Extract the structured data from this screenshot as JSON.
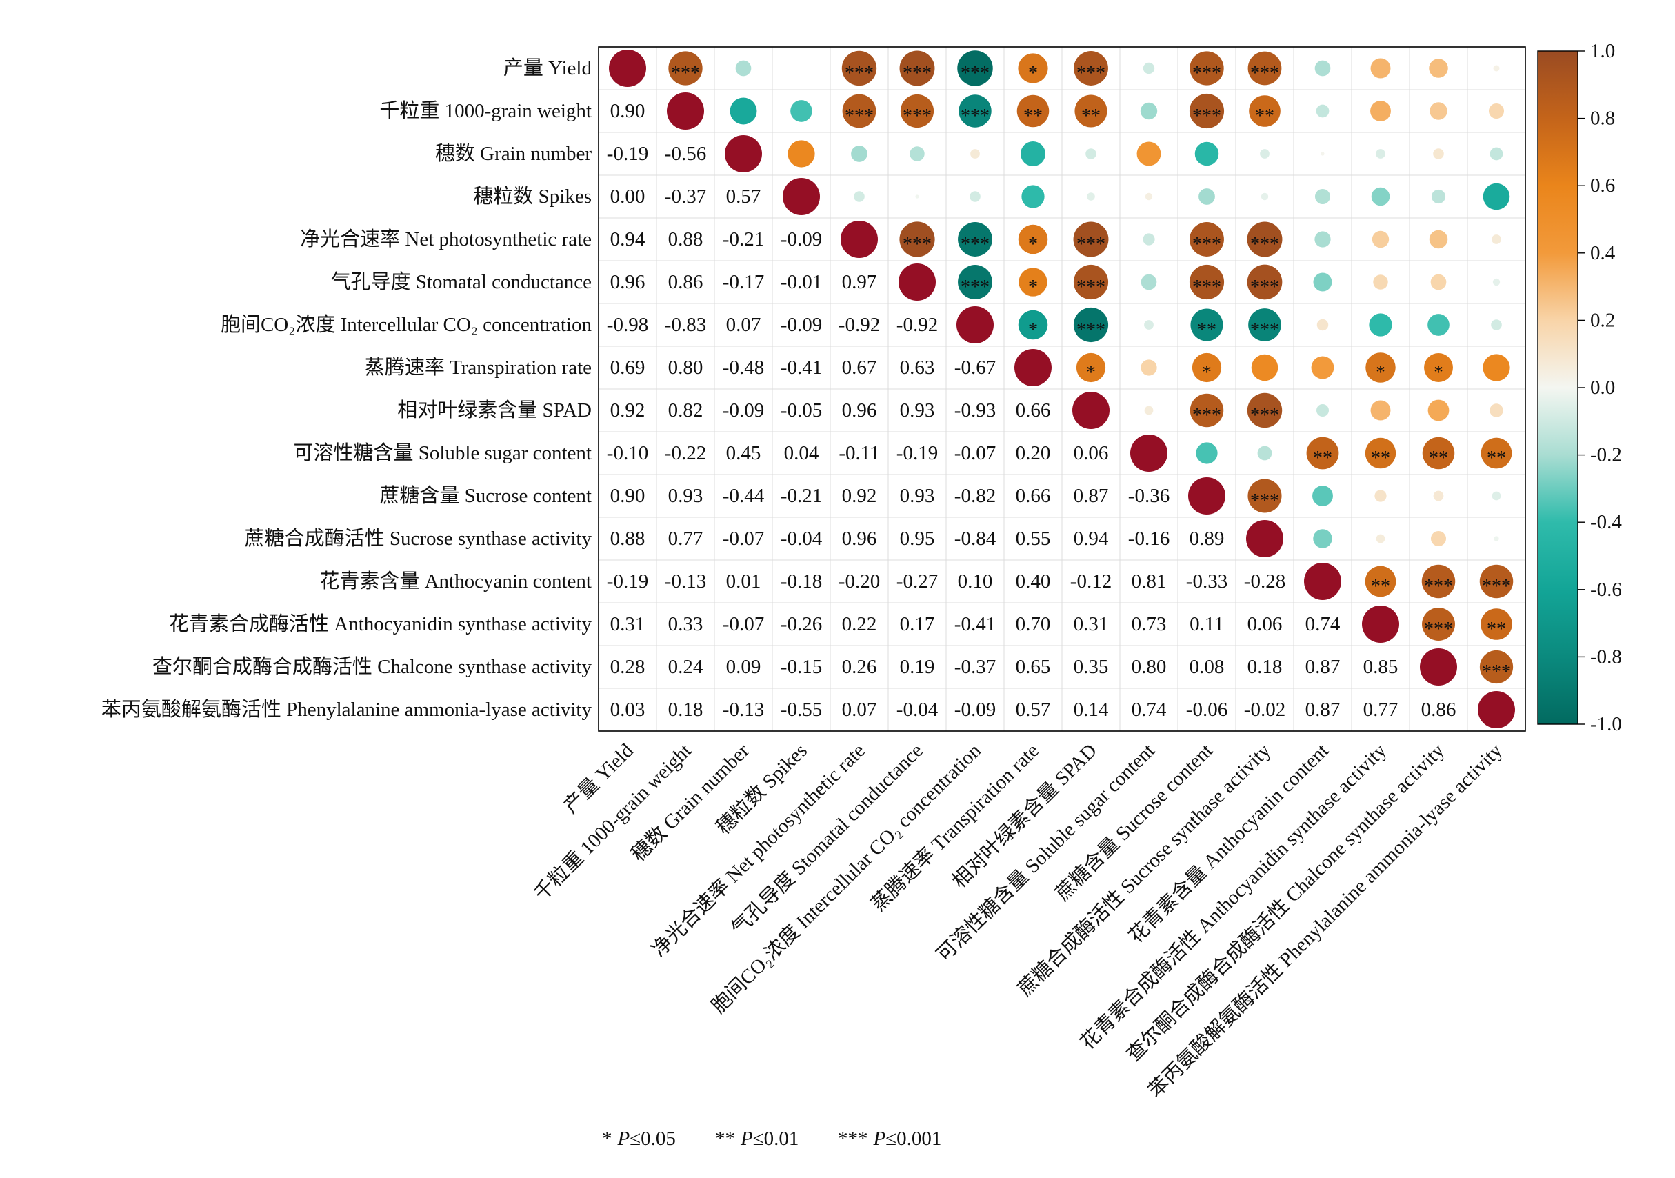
{
  "chart_data": {
    "type": "heatmap",
    "variables": [
      "产量 Yield",
      "千粒重 1000-grain weight",
      "穗数 Grain number",
      "穗粒数 Spikes",
      "净光合速率 Net photosynthetic rate",
      "气孔导度 Stomatal conductance",
      "胞间CO₂浓度 Intercellular CO₂ concentration",
      "蒸腾速率 Transpiration rate",
      "相对叶绿素含量 SPAD",
      "可溶性糖含量 Soluble sugar content",
      "蔗糖含量 Sucrose content",
      "蔗糖合成酶活性 Sucrose synthase activity",
      "花青素含量 Anthocyanin content",
      "花青素合成酶活性 Anthocyanidin synthase activity",
      "查尔酮合成酶合成酶活性 Chalcone  synthase activity",
      "苯丙氨酸解氨酶活性 Phenylalanine ammonia-lyase activity"
    ],
    "diagonal_value": 1,
    "lower_triangle": [
      [],
      [
        0.9
      ],
      [
        -0.19,
        -0.56
      ],
      [
        0.0,
        -0.37,
        0.57
      ],
      [
        0.94,
        0.88,
        -0.21,
        -0.09
      ],
      [
        0.96,
        0.86,
        -0.17,
        -0.01,
        0.97
      ],
      [
        -0.98,
        -0.83,
        0.07,
        -0.09,
        -0.92,
        -0.92
      ],
      [
        0.69,
        0.8,
        -0.48,
        -0.41,
        0.67,
        0.63,
        -0.67
      ],
      [
        0.92,
        0.82,
        -0.09,
        -0.05,
        0.96,
        0.93,
        -0.93,
        0.66
      ],
      [
        -0.1,
        -0.22,
        0.45,
        0.04,
        -0.11,
        -0.19,
        -0.07,
        0.2,
        0.06
      ],
      [
        0.9,
        0.93,
        -0.44,
        -0.21,
        0.92,
        0.93,
        -0.82,
        0.66,
        0.87,
        -0.36
      ],
      [
        0.88,
        0.77,
        -0.07,
        -0.04,
        0.96,
        0.95,
        -0.84,
        0.55,
        0.94,
        -0.16,
        0.89
      ],
      [
        -0.19,
        -0.13,
        0.01,
        -0.18,
        -0.2,
        -0.27,
        0.1,
        0.4,
        -0.12,
        0.81,
        -0.33,
        -0.28
      ],
      [
        0.31,
        0.33,
        -0.07,
        -0.26,
        0.22,
        0.17,
        -0.41,
        0.7,
        0.31,
        0.73,
        0.11,
        0.06,
        0.74
      ],
      [
        0.28,
        0.24,
        0.09,
        -0.15,
        0.26,
        0.19,
        -0.37,
        0.65,
        0.35,
        0.8,
        0.08,
        0.18,
        0.87,
        0.85
      ],
      [
        0.03,
        0.18,
        -0.13,
        -0.55,
        0.07,
        -0.04,
        -0.09,
        0.57,
        0.14,
        0.74,
        -0.06,
        -0.02,
        0.87,
        0.77,
        0.86
      ]
    ],
    "significance": [
      [
        "***",
        "",
        "",
        "***",
        "***",
        "***",
        "*",
        "***",
        "",
        "***",
        "***",
        "",
        "",
        "",
        ""
      ],
      [
        "",
        "",
        "***",
        "***",
        "***",
        "**",
        "**",
        "",
        "***",
        "**",
        "",
        "",
        "",
        ""
      ],
      [
        "",
        "",
        "",
        "",
        "",
        "",
        "",
        "",
        "",
        "",
        "",
        "",
        ""
      ],
      [
        "",
        "",
        "",
        "",
        "",
        "",
        "",
        "",
        "",
        "",
        "",
        ""
      ],
      [
        "***",
        "***",
        "*",
        "***",
        "",
        "***",
        "***",
        "",
        "",
        "",
        ""
      ],
      [
        "***",
        "*",
        "***",
        "",
        "***",
        "***",
        "",
        "",
        "",
        ""
      ],
      [
        "*",
        "***",
        "",
        "**",
        "***",
        "",
        "",
        "",
        ""
      ],
      [
        "*",
        "",
        "*",
        "",
        "",
        "*",
        "*",
        ""
      ],
      [
        "",
        "***",
        "***",
        "",
        "",
        "",
        ""
      ],
      [
        "",
        "",
        "**",
        "**",
        "**",
        "**"
      ],
      [
        "***",
        "",
        "",
        "",
        ""
      ],
      [
        "",
        "",
        "",
        ""
      ],
      [
        "**",
        "***",
        "***"
      ],
      [
        "***",
        "**"
      ],
      [
        "***"
      ]
    ],
    "diagonal_color": "#950f25",
    "colorscale": [
      {
        "value": 1.0,
        "color": "#9a4b22"
      },
      {
        "value": 0.8,
        "color": "#c4641a"
      },
      {
        "value": 0.6,
        "color": "#ea851b"
      },
      {
        "value": 0.4,
        "color": "#f29a3b"
      },
      {
        "value": 0.2,
        "color": "#f8d4a8"
      },
      {
        "value": 0.0,
        "color": "#f4f6f1"
      },
      {
        "value": -0.2,
        "color": "#a9ddd2"
      },
      {
        "value": -0.4,
        "color": "#2fbbab"
      },
      {
        "value": -0.6,
        "color": "#13a597"
      },
      {
        "value": -0.8,
        "color": "#0b8a7e"
      },
      {
        "value": -1.0,
        "color": "#026a60"
      }
    ],
    "colorbar": {
      "min": -1.0,
      "max": 1.0,
      "ticks": [
        "1.0",
        "0.8",
        "0.6",
        "0.4",
        "0.2",
        "0.0",
        "-0.2",
        "-0.4",
        "-0.6",
        "-0.8",
        "-1.0"
      ]
    },
    "significance_legend": [
      {
        "marker": "*",
        "p": "P",
        "threshold": "≤0.05"
      },
      {
        "marker": "**",
        "p": "P",
        "threshold": "≤0.01"
      },
      {
        "marker": "***",
        "p": "P",
        "threshold": "≤0.001"
      }
    ]
  }
}
